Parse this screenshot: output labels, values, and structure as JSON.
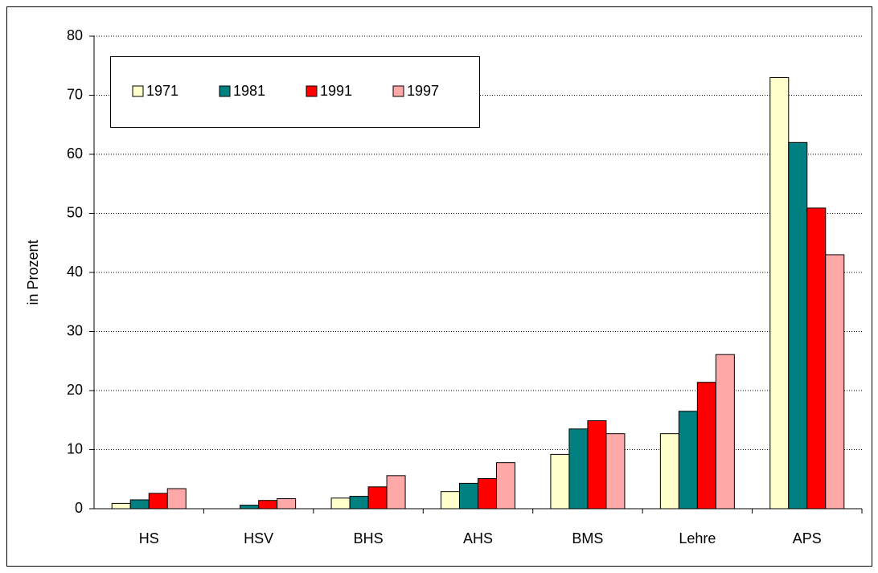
{
  "chart_data": {
    "type": "bar",
    "y_label": "in Prozent",
    "categories": [
      "HS",
      "HSV",
      "BHS",
      "AHS",
      "BMS",
      "Lehre",
      "APS"
    ],
    "series": [
      {
        "name": "1971",
        "color": "#ffffcc",
        "values": [
          0.9,
          0,
          1.8,
          2.9,
          9.2,
          12.7,
          73.0
        ]
      },
      {
        "name": "1981",
        "color": "#008080",
        "values": [
          1.5,
          0.6,
          2.1,
          4.3,
          13.5,
          16.5,
          62.0
        ]
      },
      {
        "name": "1991",
        "color": "#ff0000",
        "values": [
          2.6,
          1.4,
          3.7,
          5.1,
          14.9,
          21.4,
          50.9
        ]
      },
      {
        "name": "1997",
        "color": "#ffa8a8",
        "values": [
          3.4,
          1.7,
          5.6,
          7.8,
          12.7,
          26.1,
          43.0
        ]
      }
    ],
    "ylim": [
      0,
      80
    ],
    "yticks": [
      0,
      10,
      20,
      30,
      40,
      50,
      60,
      70,
      80
    ],
    "grid": true,
    "legend": "top-left"
  }
}
